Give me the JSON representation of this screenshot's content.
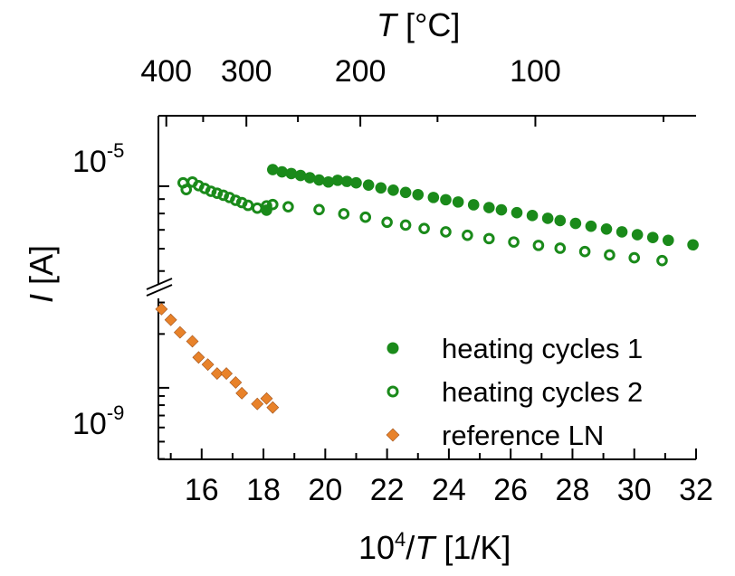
{
  "chart_data": {
    "type": "scatter",
    "title": "",
    "xlabel_prefix": "10",
    "xlabel_sup": "4",
    "xlabel_slash": "/",
    "xlabel_italic": "T",
    "xlabel_unit": " [1/K]",
    "ylabel_italic": "I",
    "ylabel_unit": " [A]",
    "top_xlabel_italic": "T",
    "top_xlabel_unit": " [°C]",
    "xlim": [
      14.6,
      32
    ],
    "x_ticks": [
      16,
      18,
      20,
      22,
      24,
      26,
      28,
      30,
      32
    ],
    "x_tick_labels": [
      "16",
      "18",
      "20",
      "22",
      "24",
      "26",
      "28",
      "30",
      "32"
    ],
    "top_ticks_celsius": [
      400,
      300,
      200,
      100
    ],
    "top_tick_labels": [
      "400",
      "300",
      "200",
      "100"
    ],
    "y_axis_break": true,
    "y_upper_segment": {
      "ylim_log10": [
        -5.35,
        -4.75
      ],
      "tick_label_base": "10",
      "tick_label_exp": "-5",
      "tick_value_log10": -5
    },
    "y_lower_segment": {
      "ylim_log10": [
        -9.4,
        -8.5
      ],
      "tick_label_base": "10",
      "tick_label_exp": "-9",
      "tick_value_log10": -9
    },
    "legend_position": "bottom-right",
    "series": [
      {
        "name": "heating cycles 1",
        "marker": "filled-circle",
        "color": "#1a8a1a",
        "segment": "upper",
        "points": [
          [
            18.3,
            -4.941
          ],
          [
            18.6,
            -4.949
          ],
          [
            18.9,
            -4.955
          ],
          [
            19.2,
            -4.962
          ],
          [
            19.5,
            -4.97
          ],
          [
            19.8,
            -4.978
          ],
          [
            20.1,
            -4.985
          ],
          [
            20.4,
            -4.979
          ],
          [
            20.7,
            -4.983
          ],
          [
            21.0,
            -4.988
          ],
          [
            21.4,
            -4.996
          ],
          [
            21.8,
            -5.006
          ],
          [
            22.2,
            -5.014
          ],
          [
            22.6,
            -5.022
          ],
          [
            23.0,
            -5.03
          ],
          [
            23.5,
            -5.04
          ],
          [
            23.9,
            -5.048
          ],
          [
            24.3,
            -5.056
          ],
          [
            24.8,
            -5.066
          ],
          [
            25.3,
            -5.076
          ],
          [
            25.7,
            -5.084
          ],
          [
            26.2,
            -5.094
          ],
          [
            26.7,
            -5.104
          ],
          [
            27.2,
            -5.114
          ],
          [
            27.6,
            -5.122
          ],
          [
            28.1,
            -5.132
          ],
          [
            28.6,
            -5.142
          ],
          [
            29.1,
            -5.152
          ],
          [
            29.6,
            -5.162
          ],
          [
            30.1,
            -5.172
          ],
          [
            30.6,
            -5.182
          ],
          [
            31.1,
            -5.192
          ],
          [
            31.9,
            -5.208
          ],
          [
            18.1,
            -5.085
          ]
        ]
      },
      {
        "name": "heating cycles 2",
        "marker": "open-circle",
        "color": "#1a8a1a",
        "segment": "upper",
        "points": [
          [
            15.4,
            -4.988
          ],
          [
            15.5,
            -5.012
          ],
          [
            15.7,
            -4.985
          ],
          [
            15.9,
            -4.998
          ],
          [
            16.1,
            -5.008
          ],
          [
            16.3,
            -5.018
          ],
          [
            16.5,
            -5.025
          ],
          [
            16.7,
            -5.032
          ],
          [
            16.9,
            -5.04
          ],
          [
            17.1,
            -5.05
          ],
          [
            17.3,
            -5.058
          ],
          [
            17.5,
            -5.068
          ],
          [
            17.8,
            -5.078
          ],
          [
            18.1,
            -5.07
          ],
          [
            18.3,
            -5.065
          ],
          [
            18.8,
            -5.073
          ],
          [
            19.8,
            -5.083
          ],
          [
            20.6,
            -5.098
          ],
          [
            21.3,
            -5.11
          ],
          [
            22.0,
            -5.128
          ],
          [
            22.6,
            -5.138
          ],
          [
            23.2,
            -5.15
          ],
          [
            23.9,
            -5.162
          ],
          [
            24.6,
            -5.174
          ],
          [
            25.3,
            -5.186
          ],
          [
            26.1,
            -5.198
          ],
          [
            26.9,
            -5.21
          ],
          [
            27.6,
            -5.22
          ],
          [
            28.4,
            -5.232
          ],
          [
            29.2,
            -5.244
          ],
          [
            30.0,
            -5.254
          ],
          [
            30.9,
            -5.264
          ]
        ]
      },
      {
        "name": "reference LN",
        "marker": "diamond",
        "color": "#e8822a",
        "segment": "lower",
        "points": [
          [
            14.7,
            -8.56
          ],
          [
            15.0,
            -8.62
          ],
          [
            15.3,
            -8.69
          ],
          [
            15.7,
            -8.74
          ],
          [
            15.9,
            -8.83
          ],
          [
            16.2,
            -8.87
          ],
          [
            16.5,
            -8.92
          ],
          [
            16.8,
            -8.92
          ],
          [
            17.1,
            -8.97
          ],
          [
            17.3,
            -9.03
          ],
          [
            17.8,
            -9.09
          ],
          [
            18.1,
            -9.06
          ],
          [
            18.3,
            -9.11
          ]
        ]
      }
    ]
  }
}
